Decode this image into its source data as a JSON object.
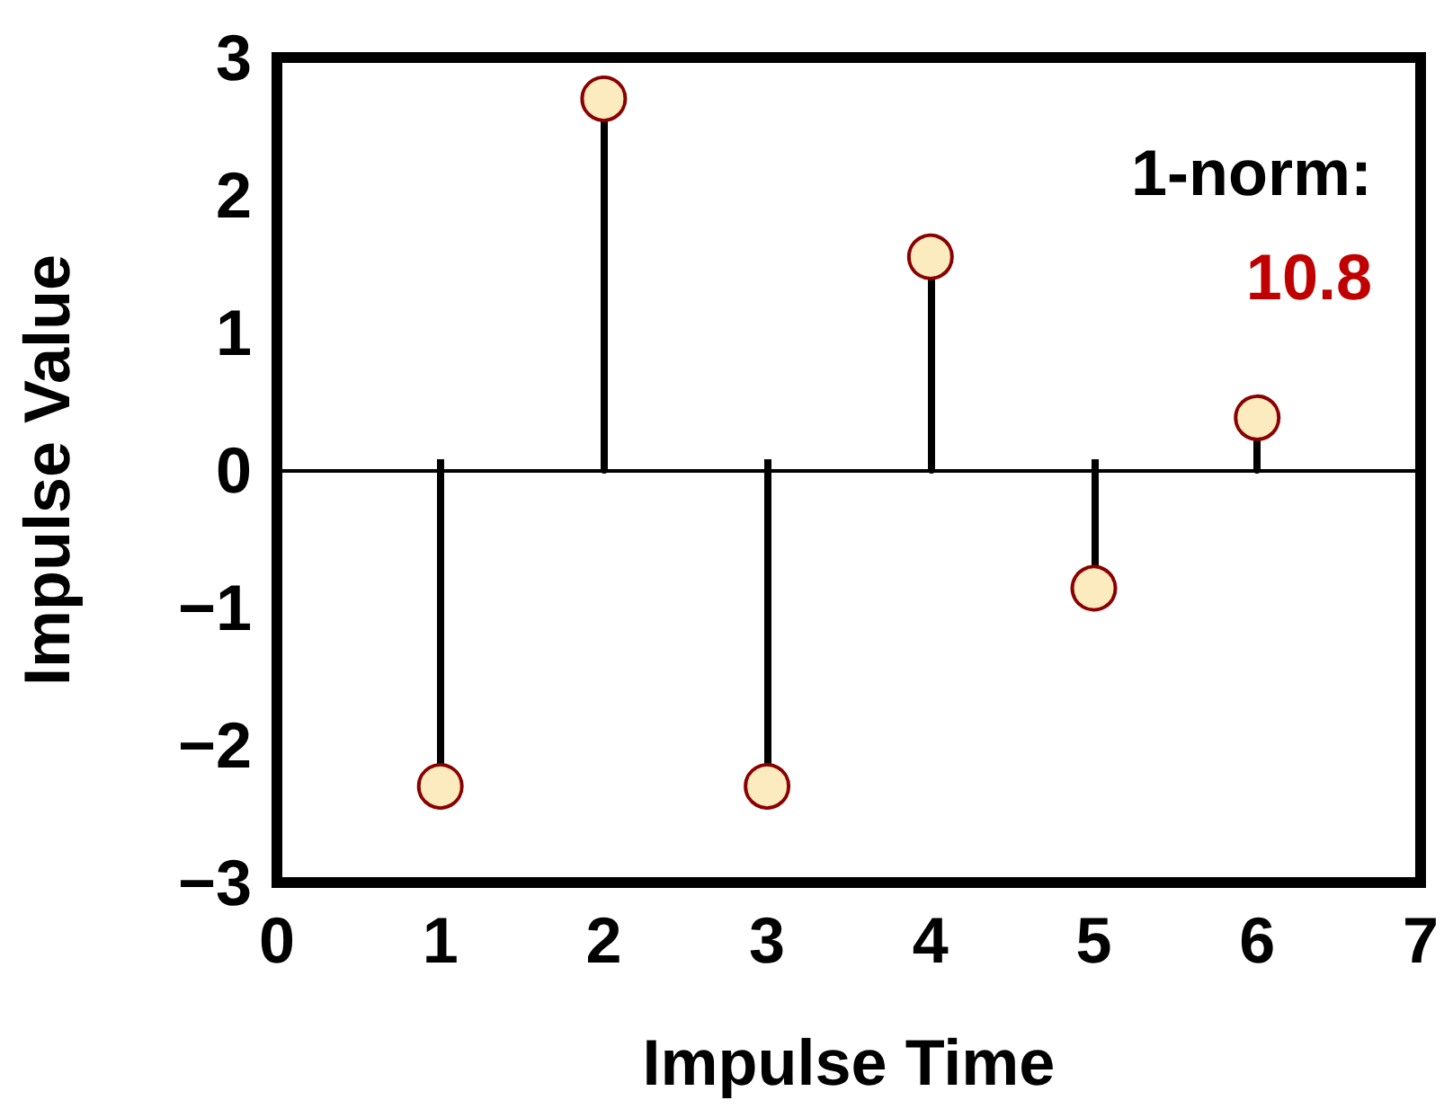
{
  "chart_data": {
    "type": "lollipop",
    "xlabel": "Impulse Time",
    "ylabel": "Impulse Value",
    "x": [
      1,
      2,
      3,
      4,
      5,
      6
    ],
    "series": [
      {
        "color": "#fdebc0",
        "values": [
          -2.3,
          2.7,
          -2.3,
          1.55,
          -0.86,
          0.38
        ]
      }
    ],
    "xlim": [
      0,
      7
    ],
    "xticks": [
      0,
      1,
      2,
      3,
      4,
      5,
      6,
      7
    ],
    "ylim": [
      -3,
      3
    ],
    "yticks": [
      -3,
      -2,
      -1,
      0,
      1,
      2,
      3
    ],
    "ref_lines": [
      {
        "axis": "y",
        "value": 0,
        "color": "#000000"
      }
    ],
    "annotations": [
      "1-norm:",
      "10.8"
    ],
    "marker": "circle",
    "grid": false
  }
}
